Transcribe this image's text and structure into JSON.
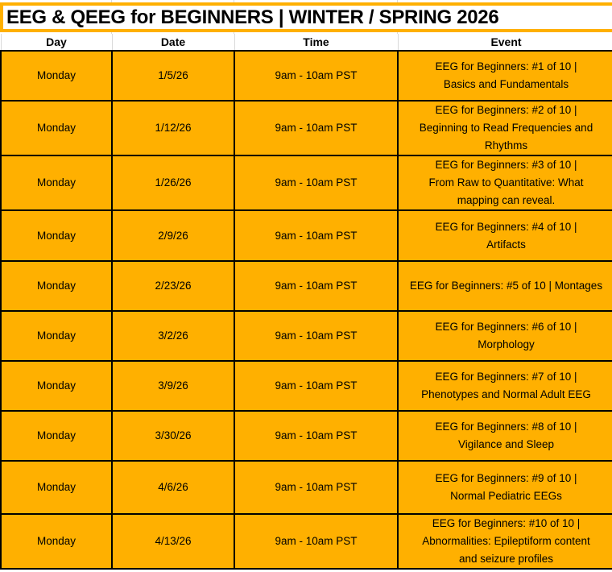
{
  "title": "EEG & QEEG for BEGINNERS | WINTER / SPRING 2026",
  "colors": {
    "accent": "#FFB000",
    "border": "#000000"
  },
  "columns": [
    "Day",
    "Date",
    "Time",
    "Event"
  ],
  "rows": [
    {
      "day": "Monday",
      "date": "1/5/26",
      "time": "9am - 10am PST",
      "event": [
        "EEG for Beginners: #1 of 10 |",
        "Basics and Fundamentals"
      ]
    },
    {
      "day": "Monday",
      "date": "1/12/26",
      "time": "9am - 10am PST",
      "event": [
        "EEG for Beginners: #2 of 10 |",
        "Beginning to Read Frequencies and",
        "Rhythms"
      ]
    },
    {
      "day": "Monday",
      "date": "1/26/26",
      "time": "9am - 10am PST",
      "event": [
        "EEG for Beginners: #3 of 10 |",
        "From Raw to Quantitative: What",
        "mapping can reveal."
      ]
    },
    {
      "day": "Monday",
      "date": "2/9/26",
      "time": "9am - 10am PST",
      "event": [
        "EEG for Beginners: #4 of 10 |",
        "Artifacts"
      ]
    },
    {
      "day": "Monday",
      "date": "2/23/26",
      "time": "9am - 10am PST",
      "event": [
        "EEG for Beginners: #5 of 10 | Montages"
      ]
    },
    {
      "day": "Monday",
      "date": "3/2/26",
      "time": "9am - 10am PST",
      "event": [
        "EEG for Beginners: #6 of 10 |",
        "Morphology"
      ]
    },
    {
      "day": "Monday",
      "date": "3/9/26",
      "time": "9am - 10am PST",
      "event": [
        "EEG for Beginners: #7 of 10 |",
        "Phenotypes and Normal Adult EEG"
      ]
    },
    {
      "day": "Monday",
      "date": "3/30/26",
      "time": "9am - 10am PST",
      "event": [
        "EEG for Beginners: #8 of 10 |",
        "Vigilance and Sleep"
      ]
    },
    {
      "day": "Monday",
      "date": "4/6/26",
      "time": "9am - 10am PST",
      "event": [
        "EEG for Beginners: #9 of 10 |",
        "Normal Pediatric EEGs"
      ]
    },
    {
      "day": "Monday",
      "date": "4/13/26",
      "time": "9am - 10am PST",
      "event": [
        "EEG for Beginners: #10 of 10 |",
        "Abnormalities: Epileptiform content",
        "and seizure profiles"
      ]
    }
  ]
}
